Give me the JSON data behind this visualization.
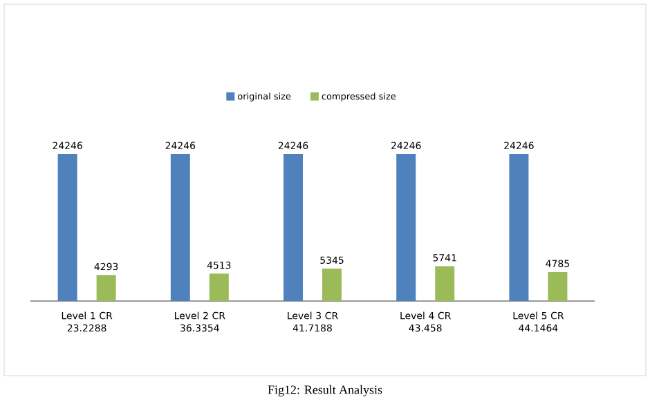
{
  "chart_data": {
    "type": "bar",
    "categories": [
      "Level 1 CR 23.2288",
      "Level 2 CR 36.3354",
      "Level 3 CR 41.7188",
      "Level 4 CR 43.458",
      "Level 5 CR 44.1464"
    ],
    "series": [
      {
        "name": "original size",
        "color": "#4f81bd",
        "values": [
          24246,
          24246,
          24246,
          24246,
          24246
        ]
      },
      {
        "name": "compressed size",
        "color": "#9bbb59",
        "values": [
          4293,
          4513,
          5345,
          5741,
          4785
        ]
      }
    ],
    "data_labels": true,
    "legend": "top",
    "annotations": [
      "Fig12: Result Analysis"
    ]
  }
}
